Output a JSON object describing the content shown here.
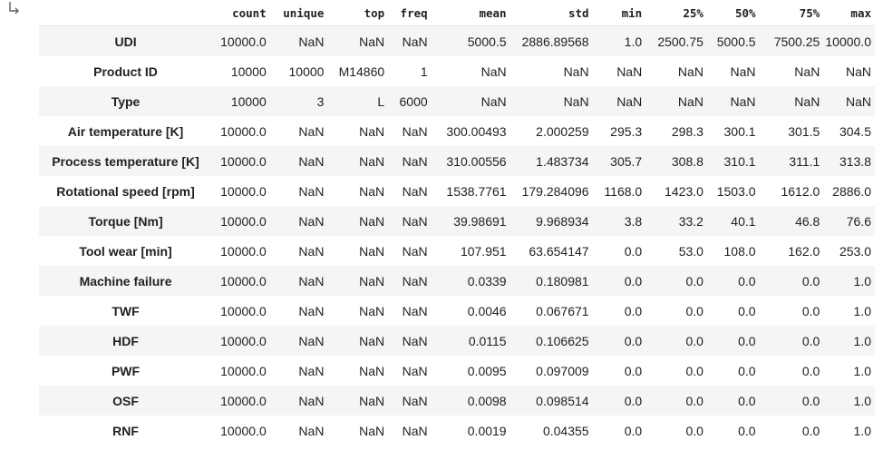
{
  "output_icon": "output-arrow-icon",
  "table": {
    "columns": [
      "count",
      "unique",
      "top",
      "freq",
      "mean",
      "std",
      "min",
      "25%",
      "50%",
      "75%",
      "max"
    ],
    "rows": [
      {
        "label": "UDI",
        "cells": [
          "10000.0",
          "NaN",
          "NaN",
          "NaN",
          "5000.5",
          "2886.89568",
          "1.0",
          "2500.75",
          "5000.5",
          "7500.25",
          "10000.0"
        ]
      },
      {
        "label": "Product ID",
        "cells": [
          "10000",
          "10000",
          "M14860",
          "1",
          "NaN",
          "NaN",
          "NaN",
          "NaN",
          "NaN",
          "NaN",
          "NaN"
        ]
      },
      {
        "label": "Type",
        "cells": [
          "10000",
          "3",
          "L",
          "6000",
          "NaN",
          "NaN",
          "NaN",
          "NaN",
          "NaN",
          "NaN",
          "NaN"
        ]
      },
      {
        "label": "Air temperature [K]",
        "cells": [
          "10000.0",
          "NaN",
          "NaN",
          "NaN",
          "300.00493",
          "2.000259",
          "295.3",
          "298.3",
          "300.1",
          "301.5",
          "304.5"
        ]
      },
      {
        "label": "Process temperature [K]",
        "cells": [
          "10000.0",
          "NaN",
          "NaN",
          "NaN",
          "310.00556",
          "1.483734",
          "305.7",
          "308.8",
          "310.1",
          "311.1",
          "313.8"
        ]
      },
      {
        "label": "Rotational speed [rpm]",
        "cells": [
          "10000.0",
          "NaN",
          "NaN",
          "NaN",
          "1538.7761",
          "179.284096",
          "1168.0",
          "1423.0",
          "1503.0",
          "1612.0",
          "2886.0"
        ]
      },
      {
        "label": "Torque [Nm]",
        "cells": [
          "10000.0",
          "NaN",
          "NaN",
          "NaN",
          "39.98691",
          "9.968934",
          "3.8",
          "33.2",
          "40.1",
          "46.8",
          "76.6"
        ]
      },
      {
        "label": "Tool wear [min]",
        "cells": [
          "10000.0",
          "NaN",
          "NaN",
          "NaN",
          "107.951",
          "63.654147",
          "0.0",
          "53.0",
          "108.0",
          "162.0",
          "253.0"
        ]
      },
      {
        "label": "Machine failure",
        "cells": [
          "10000.0",
          "NaN",
          "NaN",
          "NaN",
          "0.0339",
          "0.180981",
          "0.0",
          "0.0",
          "0.0",
          "0.0",
          "1.0"
        ]
      },
      {
        "label": "TWF",
        "cells": [
          "10000.0",
          "NaN",
          "NaN",
          "NaN",
          "0.0046",
          "0.067671",
          "0.0",
          "0.0",
          "0.0",
          "0.0",
          "1.0"
        ]
      },
      {
        "label": "HDF",
        "cells": [
          "10000.0",
          "NaN",
          "NaN",
          "NaN",
          "0.0115",
          "0.106625",
          "0.0",
          "0.0",
          "0.0",
          "0.0",
          "1.0"
        ]
      },
      {
        "label": "PWF",
        "cells": [
          "10000.0",
          "NaN",
          "NaN",
          "NaN",
          "0.0095",
          "0.097009",
          "0.0",
          "0.0",
          "0.0",
          "0.0",
          "1.0"
        ]
      },
      {
        "label": "OSF",
        "cells": [
          "10000.0",
          "NaN",
          "NaN",
          "NaN",
          "0.0098",
          "0.098514",
          "0.0",
          "0.0",
          "0.0",
          "0.0",
          "1.0"
        ]
      },
      {
        "label": "RNF",
        "cells": [
          "10000.0",
          "NaN",
          "NaN",
          "NaN",
          "0.0019",
          "0.04355",
          "0.0",
          "0.0",
          "0.0",
          "0.0",
          "1.0"
        ]
      }
    ]
  }
}
